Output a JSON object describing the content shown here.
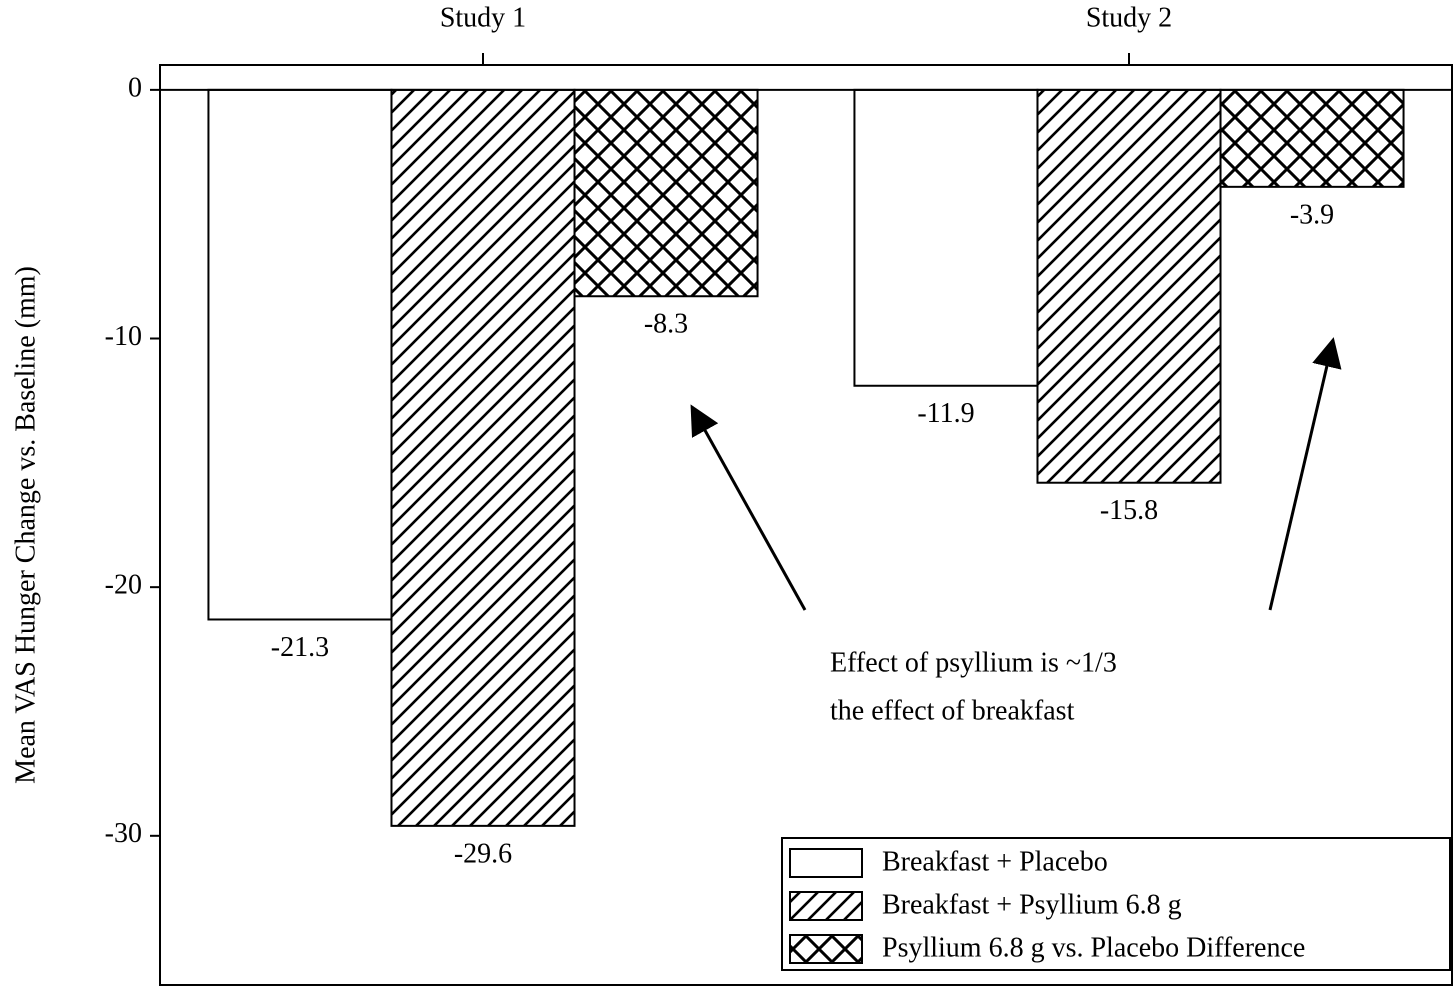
{
  "chart_data": {
    "type": "bar",
    "ylabel": "Mean VAS Hunger Change vs. Baseline (mm)",
    "categories": [
      "Study 1",
      "Study 2"
    ],
    "series": [
      {
        "name": "Breakfast + Placebo",
        "hatch": "none",
        "color": "#000000",
        "values": [
          -21.3,
          -11.9
        ]
      },
      {
        "name": "Breakfast + Psyllium 6.8 g",
        "hatch": "diagonal",
        "color": "#000000",
        "values": [
          -29.6,
          -15.8
        ]
      },
      {
        "name": "Psyllium 6.8 g vs. Placebo Difference",
        "hatch": "crosshatch",
        "color": "#000000",
        "values": [
          -8.3,
          -3.9
        ]
      }
    ],
    "ylim": [
      -36,
      1
    ],
    "yticks": [
      0,
      -10,
      -20,
      -30
    ],
    "annotation": [
      "Effect of psyllium is ~1/3",
      "the effect of breakfast"
    ],
    "legend": "lower right",
    "grid": false
  }
}
